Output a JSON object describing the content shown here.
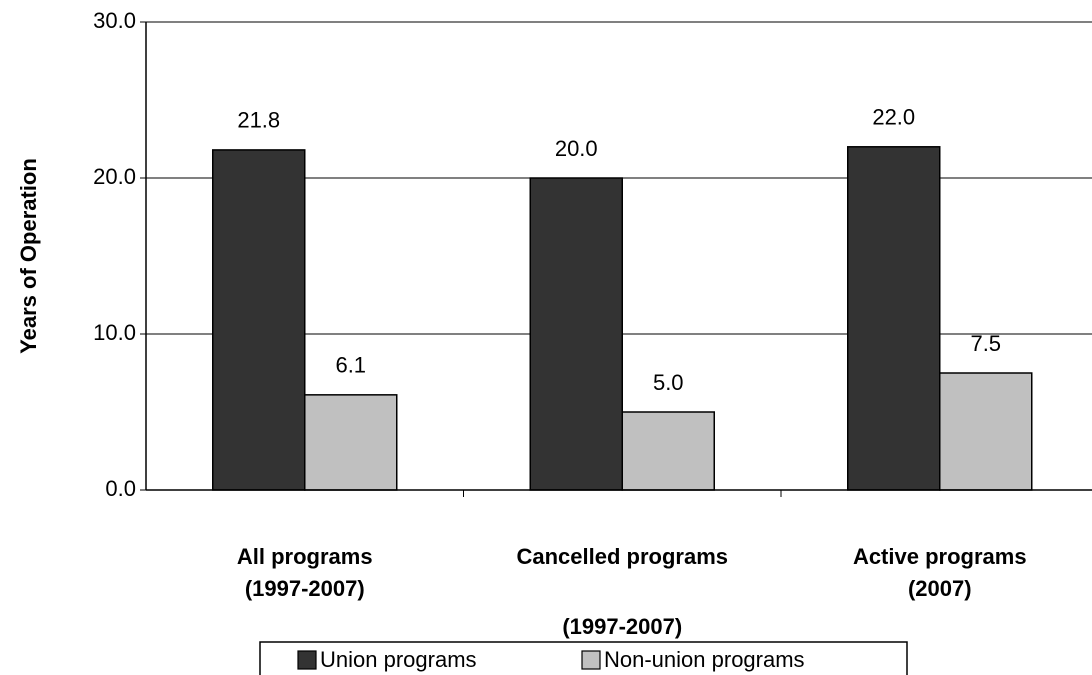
{
  "chart_data": {
    "type": "bar",
    "y_label": "Years of Operation",
    "categories": [
      [
        "All programs",
        "(1997-2007)"
      ],
      [
        "Cancelled programs",
        "(1997-2007)"
      ],
      [
        "Active programs",
        "(2007)"
      ]
    ],
    "series": [
      {
        "name": "Union programs",
        "color": "#333333",
        "values": [
          21.8,
          20.0,
          22.0
        ],
        "value_labels": [
          "21.8",
          "20.0",
          "22.0"
        ]
      },
      {
        "name": "Non-union programs",
        "color": "#c0c0c0",
        "values": [
          6.1,
          5.0,
          7.5
        ],
        "value_labels": [
          "6.1",
          "5.0",
          "7.5"
        ]
      }
    ],
    "ylim": [
      0,
      30
    ],
    "yticks": [
      {
        "value": 0,
        "label": "0.0"
      },
      {
        "value": 10,
        "label": "10.0"
      },
      {
        "value": 20,
        "label": "20.0"
      },
      {
        "value": 30,
        "label": "30.0"
      }
    ],
    "grid": true
  }
}
